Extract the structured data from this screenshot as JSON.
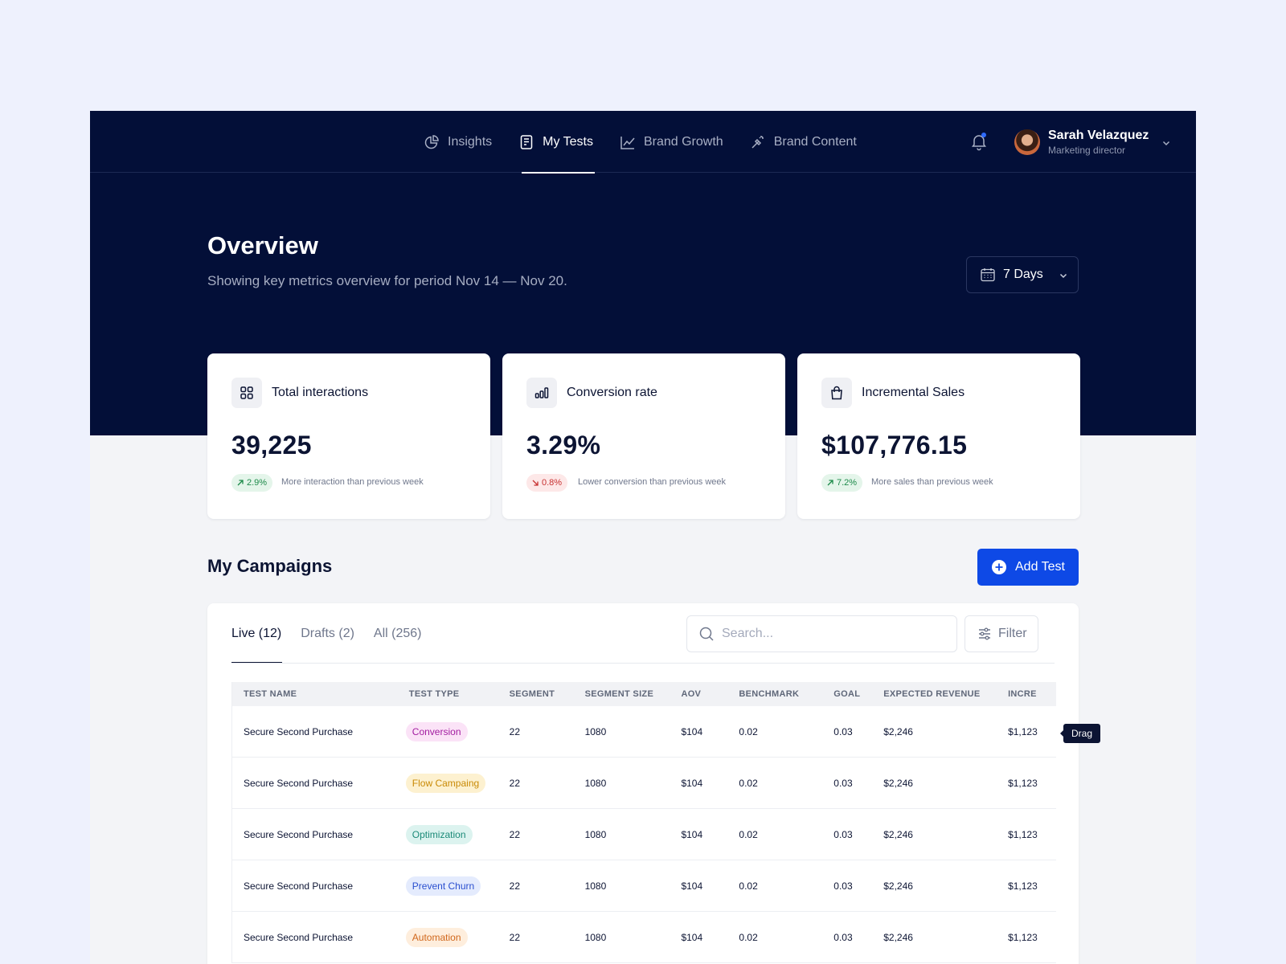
{
  "nav": {
    "items": [
      {
        "label": "Insights",
        "icon": "pie-chart-icon",
        "active": false
      },
      {
        "label": "My Tests",
        "icon": "document-icon",
        "active": true
      },
      {
        "label": "Brand Growth",
        "icon": "trend-chart-icon",
        "active": false
      },
      {
        "label": "Brand Content",
        "icon": "magic-wand-icon",
        "active": false
      }
    ],
    "notification_icon": "bell-icon",
    "user": {
      "name": "Sarah Velazquez",
      "role": "Marketing director"
    }
  },
  "overview": {
    "title": "Overview",
    "subtitle": "Showing key metrics overview for period Nov 14 — Nov 20.",
    "period": "7 Days"
  },
  "metrics": [
    {
      "title": "Total interactions",
      "icon": "grid-icon",
      "value": "39,225",
      "delta": "2.9%",
      "trend": "up",
      "note": "More interaction than previous week"
    },
    {
      "title": "Conversion rate",
      "icon": "bar-chart-icon",
      "value": "3.29%",
      "delta": "0.8%",
      "trend": "down",
      "note": "Lower conversion than previous week"
    },
    {
      "title": "Incremental Sales",
      "icon": "shopping-bag-icon",
      "value": "$107,776.15",
      "delta": "7.2%",
      "trend": "up",
      "note": "More sales than previous week"
    }
  ],
  "campaigns": {
    "title": "My Campaigns",
    "add_button": "Add Test",
    "tabs": [
      "Live (12)",
      "Drafts (2)",
      "All (256)"
    ],
    "search_placeholder": "Search...",
    "filter_label": "Filter",
    "columns": [
      "TEST NAME",
      "TEST TYPE",
      "SEGMENT",
      "SEGMENT SIZE",
      "AOV",
      "BENCHMARK",
      "GOAL",
      "EXPECTED REVENUE",
      "INCRE"
    ],
    "rows": [
      {
        "name": "Secure Second Purchase",
        "type": "Conversion",
        "segment": "22",
        "size": "1080",
        "aov": "$104",
        "benchmark": "0.02",
        "goal": "0.03",
        "revenue": "$2,246",
        "incremental": "$1,123"
      },
      {
        "name": "Secure Second Purchase",
        "type": "Flow Campaing",
        "segment": "22",
        "size": "1080",
        "aov": "$104",
        "benchmark": "0.02",
        "goal": "0.03",
        "revenue": "$2,246",
        "incremental": "$1,123"
      },
      {
        "name": "Secure Second Purchase",
        "type": "Optimization",
        "segment": "22",
        "size": "1080",
        "aov": "$104",
        "benchmark": "0.02",
        "goal": "0.03",
        "revenue": "$2,246",
        "incremental": "$1,123"
      },
      {
        "name": "Secure Second Purchase",
        "type": "Prevent Churn",
        "segment": "22",
        "size": "1080",
        "aov": "$104",
        "benchmark": "0.02",
        "goal": "0.03",
        "revenue": "$2,246",
        "incremental": "$1,123"
      },
      {
        "name": "Secure Second Purchase",
        "type": "Automation",
        "segment": "22",
        "size": "1080",
        "aov": "$104",
        "benchmark": "0.02",
        "goal": "0.03",
        "revenue": "$2,246",
        "incremental": "$1,123"
      }
    ],
    "tag_colors": {
      "Conversion": {
        "bg": "#fbe3f7",
        "fg": "#a21ca0"
      },
      "Flow Campaing": {
        "bg": "#fdf1d0",
        "fg": "#c98a06"
      },
      "Optimization": {
        "bg": "#dcf3ef",
        "fg": "#1b8a78"
      },
      "Prevent Churn": {
        "bg": "#e4ebfd",
        "fg": "#2a4fcf"
      },
      "Automation": {
        "bg": "#feeedd",
        "fg": "#d0661a"
      }
    }
  },
  "tooltip": "Drag",
  "colors": {
    "navy": "#030f38",
    "accent": "#0e49e6",
    "positive": "#1d8a4a",
    "negative": "#c73030"
  }
}
